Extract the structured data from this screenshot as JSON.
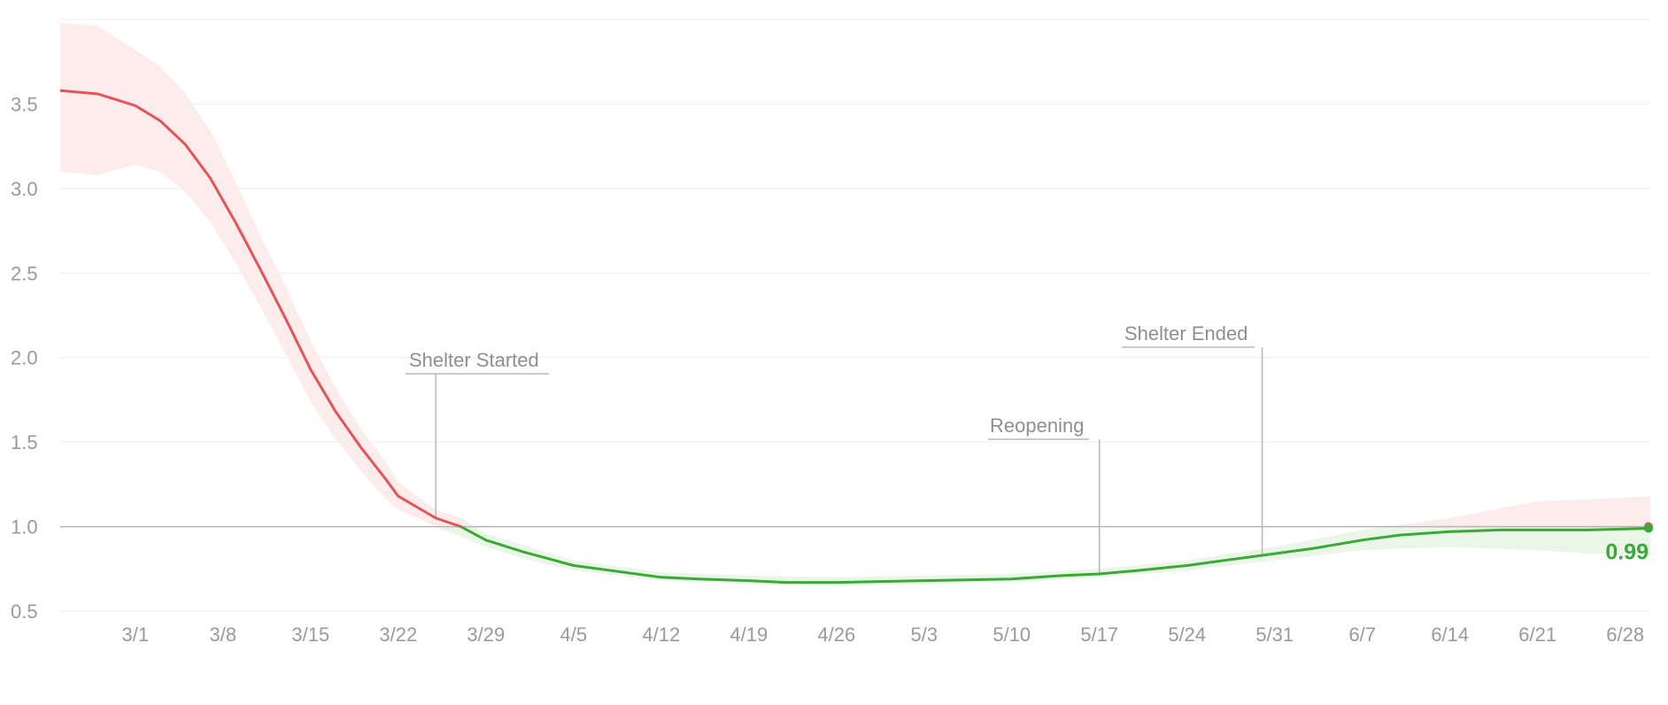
{
  "chart_data": {
    "type": "line",
    "title": "",
    "xlabel": "",
    "ylabel": "",
    "x_start": "2/24",
    "x_end": "6/30",
    "ylim": [
      0.5,
      4.0
    ],
    "yticks": [
      0.5,
      1.0,
      1.5,
      2.0,
      2.5,
      3.0,
      3.5
    ],
    "ytick_labels": [
      "0.5",
      "1.0",
      "1.5",
      "2.0",
      "2.5",
      "3.0",
      "3.5"
    ],
    "xtick_labels": [
      "3/1",
      "3/8",
      "3/15",
      "3/22",
      "3/29",
      "4/5",
      "4/12",
      "4/19",
      "4/26",
      "5/3",
      "5/10",
      "5/17",
      "5/24",
      "5/31",
      "6/7",
      "6/14",
      "6/21",
      "6/28"
    ],
    "grid": true,
    "threshold": 1.0,
    "colors": {
      "above": "#e5535b",
      "below": "#3aaa35",
      "band_above": "#fdecec",
      "band_below": "#eaf6e8",
      "grid": "#ececec",
      "threshold": "#b5b5b5",
      "annotation": "#b8b8b8"
    },
    "series": [
      {
        "points": [
          [
            "2/24",
            3.58
          ],
          [
            "2/27",
            3.56
          ],
          [
            "3/1",
            3.49
          ],
          [
            "3/3",
            3.4
          ],
          [
            "3/5",
            3.26
          ],
          [
            "3/7",
            3.06
          ],
          [
            "3/9",
            2.8
          ],
          [
            "3/11",
            2.52
          ],
          [
            "3/13",
            2.23
          ],
          [
            "3/15",
            1.93
          ],
          [
            "3/17",
            1.68
          ],
          [
            "3/19",
            1.47
          ],
          [
            "3/21",
            1.28
          ],
          [
            "3/22",
            1.18
          ],
          [
            "3/25",
            1.05
          ],
          [
            "3/27",
            1.0
          ],
          [
            "3/29",
            0.92
          ],
          [
            "4/1",
            0.85
          ],
          [
            "4/3",
            0.81
          ],
          [
            "4/5",
            0.77
          ],
          [
            "4/8",
            0.74
          ],
          [
            "4/12",
            0.7
          ],
          [
            "4/15",
            0.69
          ],
          [
            "4/19",
            0.68
          ],
          [
            "4/22",
            0.67
          ],
          [
            "4/26",
            0.67
          ],
          [
            "5/3",
            0.68
          ],
          [
            "5/10",
            0.69
          ],
          [
            "5/14",
            0.71
          ],
          [
            "5/17",
            0.72
          ],
          [
            "5/20",
            0.74
          ],
          [
            "5/24",
            0.77
          ],
          [
            "5/27",
            0.8
          ],
          [
            "5/31",
            0.84
          ],
          [
            "6/3",
            0.87
          ],
          [
            "6/7",
            0.92
          ],
          [
            "6/10",
            0.95
          ],
          [
            "6/14",
            0.97
          ],
          [
            "6/18",
            0.98
          ],
          [
            "6/21",
            0.98
          ],
          [
            "6/25",
            0.98
          ],
          [
            "6/30",
            0.99
          ]
        ],
        "band_lower": [
          [
            "2/24",
            3.1
          ],
          [
            "2/27",
            3.08
          ],
          [
            "3/1",
            3.14
          ],
          [
            "3/3",
            3.1
          ],
          [
            "3/5",
            2.98
          ],
          [
            "3/7",
            2.8
          ],
          [
            "3/9",
            2.56
          ],
          [
            "3/11",
            2.3
          ],
          [
            "3/13",
            2.02
          ],
          [
            "3/15",
            1.74
          ],
          [
            "3/17",
            1.52
          ],
          [
            "3/19",
            1.33
          ],
          [
            "3/21",
            1.16
          ],
          [
            "3/22",
            1.1
          ],
          [
            "3/25",
            1.0
          ],
          [
            "3/27",
            0.94
          ],
          [
            "3/29",
            0.88
          ],
          [
            "4/1",
            0.81
          ],
          [
            "4/5",
            0.74
          ],
          [
            "4/12",
            0.68
          ],
          [
            "4/19",
            0.66
          ],
          [
            "4/26",
            0.65
          ],
          [
            "5/3",
            0.66
          ],
          [
            "5/10",
            0.67
          ],
          [
            "5/17",
            0.7
          ],
          [
            "5/24",
            0.74
          ],
          [
            "5/31",
            0.8
          ],
          [
            "6/7",
            0.86
          ],
          [
            "6/14",
            0.88
          ],
          [
            "6/21",
            0.86
          ],
          [
            "6/25",
            0.84
          ],
          [
            "6/30",
            0.83
          ]
        ],
        "band_upper": [
          [
            "2/24",
            3.98
          ],
          [
            "2/27",
            3.96
          ],
          [
            "3/1",
            3.82
          ],
          [
            "3/3",
            3.72
          ],
          [
            "3/5",
            3.56
          ],
          [
            "3/7",
            3.34
          ],
          [
            "3/9",
            3.04
          ],
          [
            "3/11",
            2.72
          ],
          [
            "3/13",
            2.42
          ],
          [
            "3/15",
            2.1
          ],
          [
            "3/17",
            1.82
          ],
          [
            "3/19",
            1.58
          ],
          [
            "3/21",
            1.38
          ],
          [
            "3/22",
            1.26
          ],
          [
            "3/25",
            1.1
          ],
          [
            "3/27",
            1.05
          ],
          [
            "3/29",
            0.96
          ],
          [
            "4/1",
            0.89
          ],
          [
            "4/5",
            0.8
          ],
          [
            "4/12",
            0.73
          ],
          [
            "4/19",
            0.71
          ],
          [
            "4/26",
            0.7
          ],
          [
            "5/3",
            0.71
          ],
          [
            "5/10",
            0.72
          ],
          [
            "5/17",
            0.75
          ],
          [
            "5/24",
            0.8
          ],
          [
            "5/31",
            0.88
          ],
          [
            "6/7",
            0.98
          ],
          [
            "6/14",
            1.05
          ],
          [
            "6/21",
            1.15
          ],
          [
            "6/25",
            1.16
          ],
          [
            "6/30",
            1.18
          ]
        ]
      }
    ],
    "annotations": [
      {
        "label": "Shelter Started",
        "date": "3/25"
      },
      {
        "label": "Reopening",
        "date": "5/17"
      },
      {
        "label": "Shelter Ended",
        "date": "5/30"
      }
    ],
    "final_value_label": "0.99"
  }
}
